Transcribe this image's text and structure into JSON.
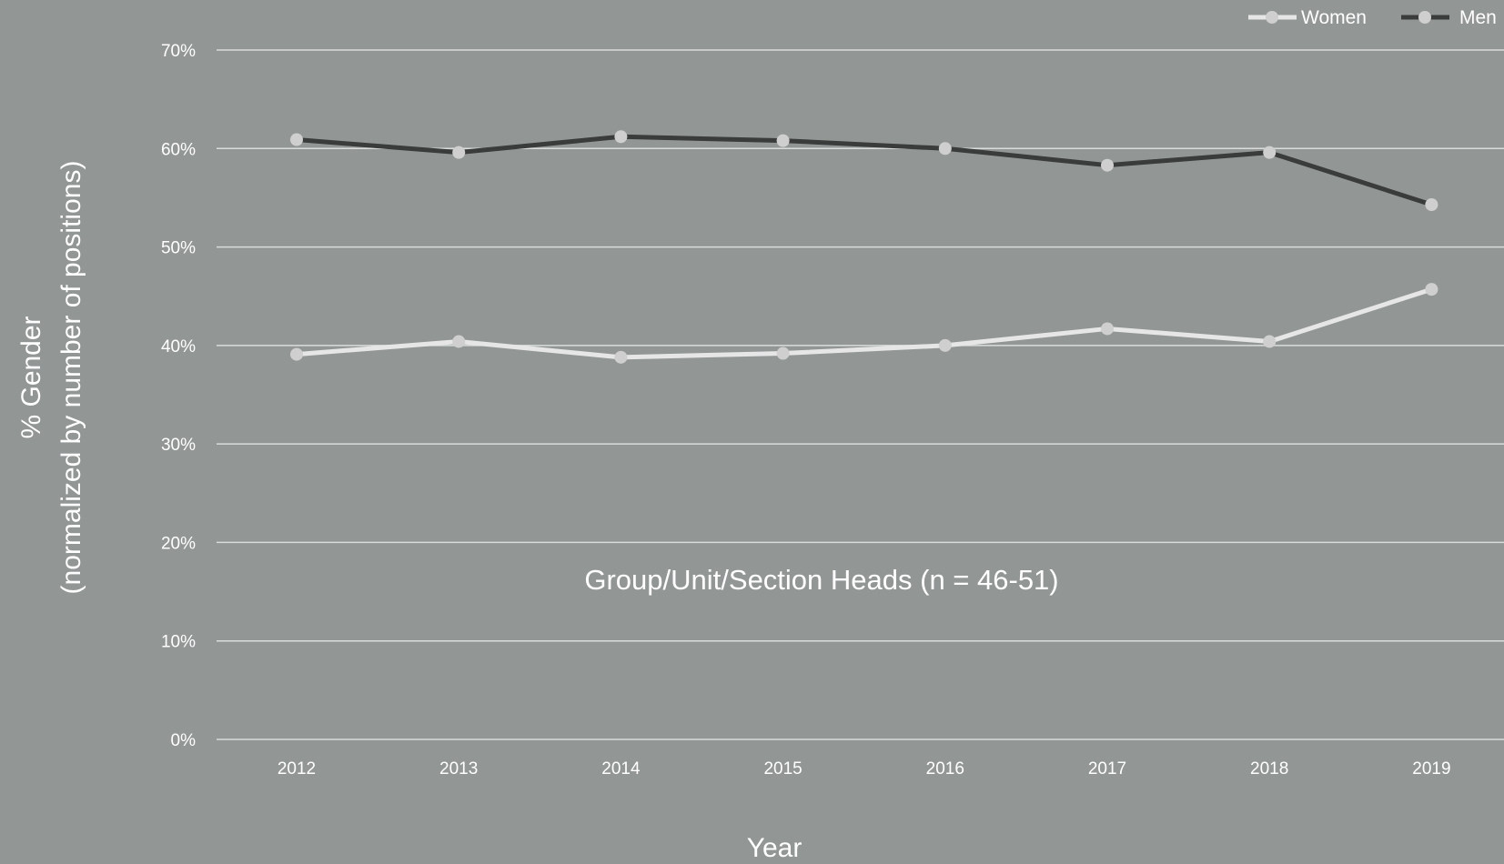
{
  "chart_data": {
    "type": "line",
    "categories": [
      "2012",
      "2013",
      "2014",
      "2015",
      "2016",
      "2017",
      "2018",
      "2019"
    ],
    "series": [
      {
        "name": "Women",
        "values": [
          39.1,
          40.4,
          38.8,
          39.2,
          40.0,
          41.7,
          40.4,
          45.7
        ]
      },
      {
        "name": "Men",
        "values": [
          60.9,
          59.6,
          61.2,
          60.8,
          60.0,
          58.3,
          59.6,
          54.3
        ]
      }
    ],
    "ylabel_line1": "% Gender",
    "ylabel_line2": "(normalized by number of positions)",
    "xlabel": "Year",
    "annotation": "Group/Unit/Section Heads (n = 46-51)",
    "ylim": [
      0,
      70
    ],
    "yticks": [
      0,
      10,
      20,
      30,
      40,
      50,
      60,
      70
    ],
    "ytick_labels": [
      "0%",
      "10%",
      "20%",
      "30%",
      "40%",
      "50%",
      "60%",
      "70%"
    ],
    "grid": true,
    "legend_position": "top-right",
    "colors": {
      "background": "#929796",
      "gridline": "#d9dcdb",
      "Women": "#e6e6e6",
      "Men": "#3a3b3b",
      "marker": "#cfcfcf"
    }
  }
}
